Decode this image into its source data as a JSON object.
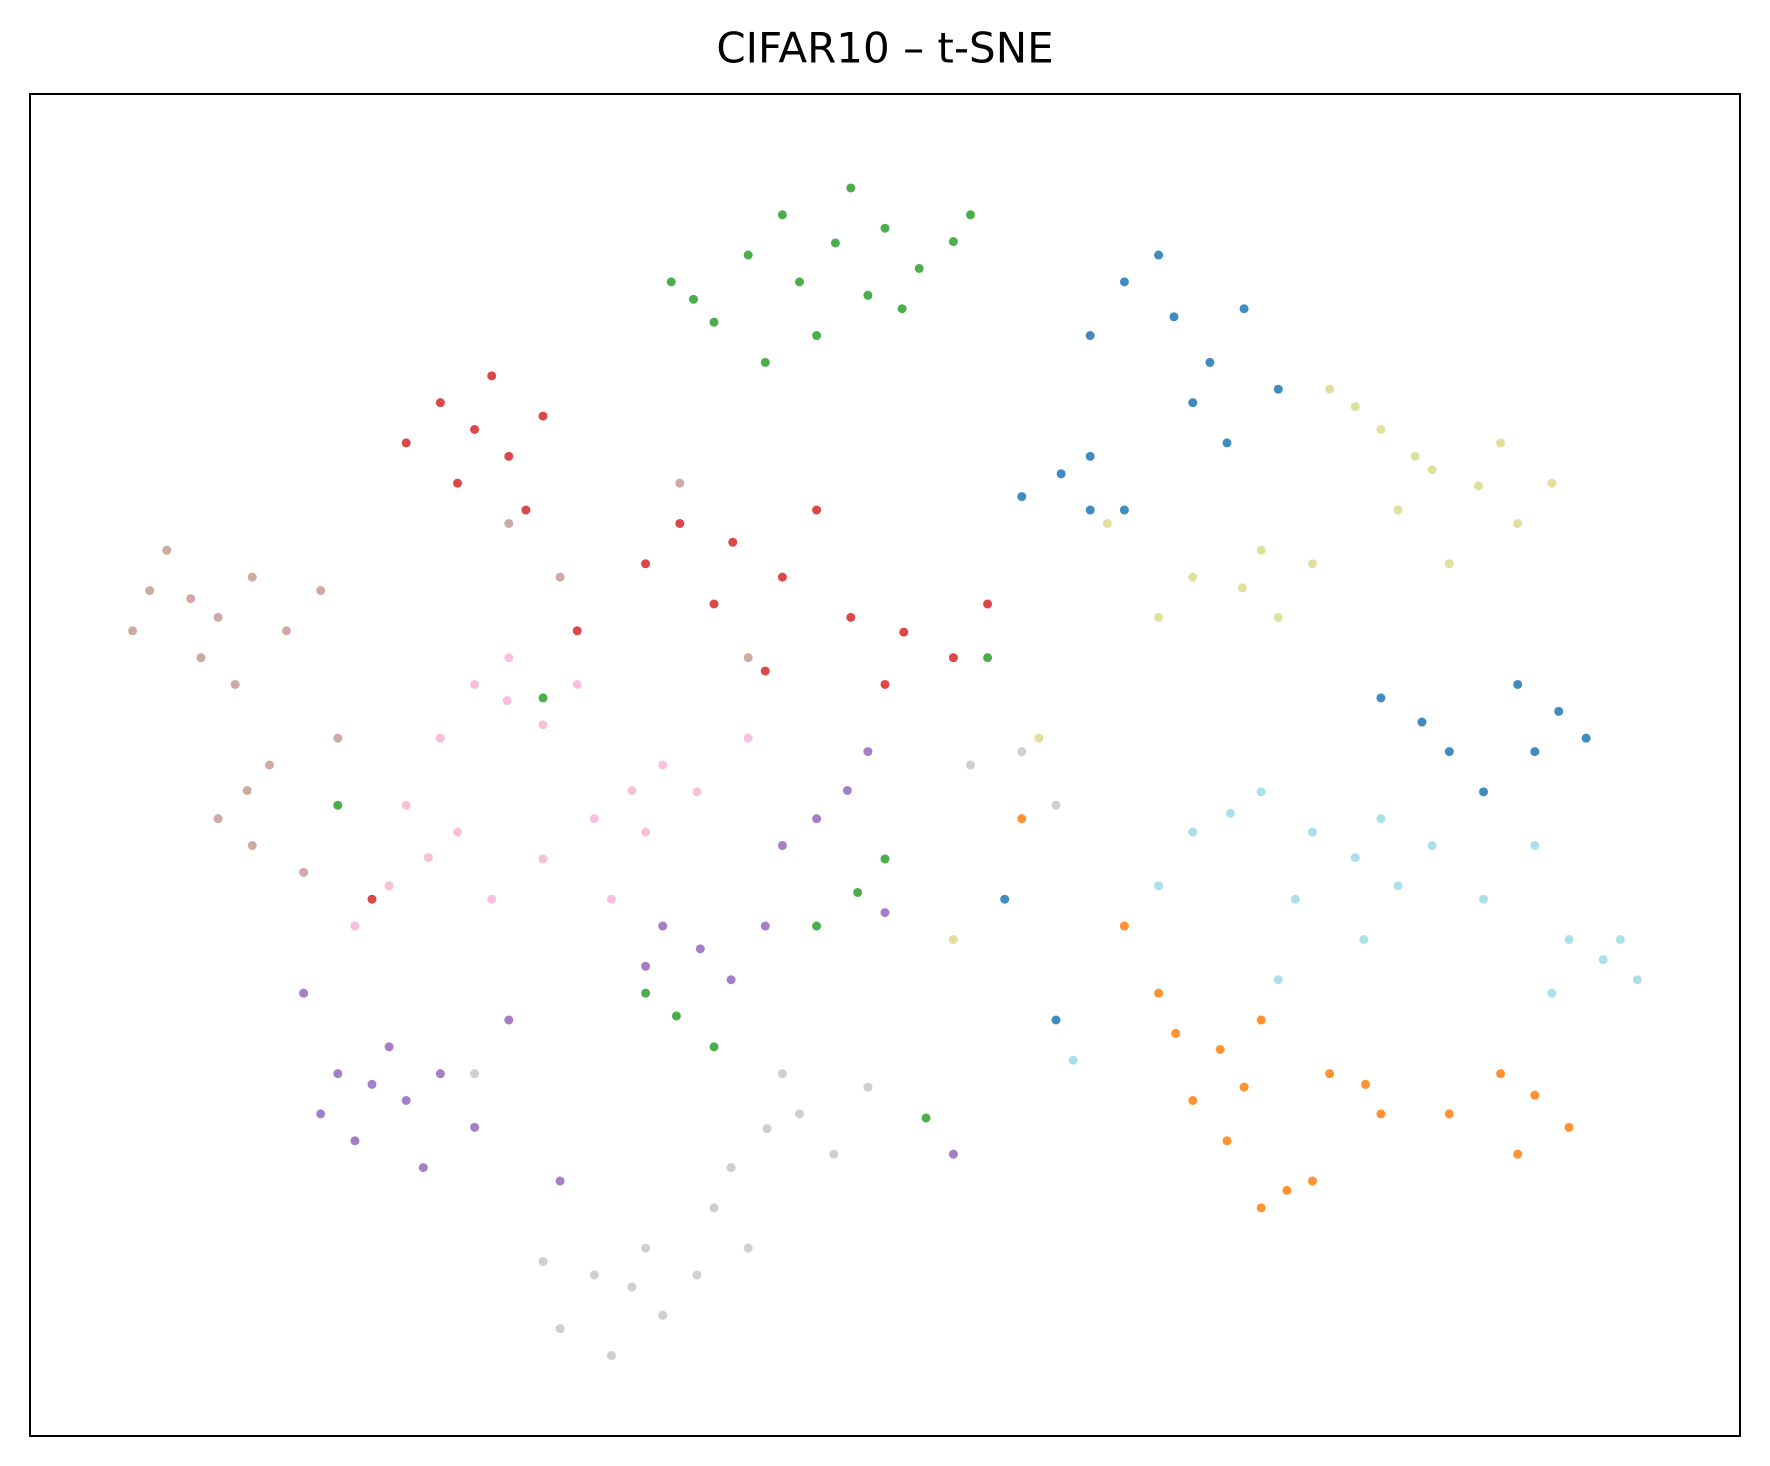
{
  "chart_data": {
    "type": "scatter",
    "title": "CIFAR10 – t-SNE",
    "xlim": [
      0,
      100
    ],
    "ylim": [
      0,
      100
    ],
    "series": [
      {
        "color": "#2ca02c",
        "x": [
          47.1,
          44,
          50,
          52,
          45,
          48,
          42,
          54,
          49,
          38.8,
          40,
          37.5,
          43,
          46,
          51,
          55,
          48.4,
          50,
          46,
          37.8,
          40,
          36,
          52.4,
          30,
          18,
          56
        ],
        "y": [
          88.9,
          91,
          90,
          87,
          86,
          93,
          88,
          89,
          85,
          84.7,
          83,
          86,
          80,
          82,
          84,
          91,
          40.5,
          43,
          38,
          31.3,
          29,
          33,
          23.7,
          55,
          47,
          58
        ]
      },
      {
        "color": "#1f77b4",
        "x": [
          66.9,
          64,
          69,
          71,
          66,
          68,
          73,
          62,
          60.3,
          58,
          62,
          64,
          70,
          89.4,
          87,
          91,
          88,
          81.4,
          79,
          83,
          85,
          57,
          60,
          62
        ],
        "y": [
          83.4,
          86,
          80,
          84,
          88,
          77,
          78,
          82,
          71.7,
          70,
          73,
          69,
          74,
          54,
          56,
          52,
          51,
          53.2,
          55,
          51,
          48,
          40,
          31,
          69
        ]
      },
      {
        "color": "#d62728",
        "x": [
          26,
          24,
          28,
          22,
          27,
          30,
          25,
          29,
          41.1,
          38,
          44,
          40,
          36,
          46,
          51.1,
          48,
          54,
          50,
          56,
          20,
          32,
          43
        ],
        "y": [
          75,
          77,
          73,
          74,
          79,
          76,
          71,
          69,
          66.6,
          68,
          64,
          62,
          65,
          69,
          59.9,
          61,
          58,
          56,
          62,
          40,
          60,
          57
        ]
      },
      {
        "color": "#c49c94",
        "x": [
          9.4,
          7,
          11,
          6,
          13,
          10,
          15,
          8,
          17,
          12,
          12.7,
          11,
          14,
          13,
          16,
          18,
          31,
          28,
          38,
          42
        ],
        "y": [
          62.4,
          63,
          61,
          60,
          64,
          58,
          60,
          66,
          63,
          56,
          48.1,
          46,
          50,
          44,
          42,
          52,
          64,
          68,
          71,
          58
        ]
      },
      {
        "color": "#f7b6d2",
        "x": [
          27.9,
          26,
          30,
          24,
          28,
          32,
          35.2,
          33,
          37,
          36,
          39,
          23.3,
          21,
          25,
          22,
          27,
          30,
          42,
          34,
          19
        ],
        "y": [
          54.8,
          56,
          53,
          52,
          58,
          56,
          48.1,
          46,
          50,
          45,
          48,
          43.1,
          41,
          45,
          47,
          40,
          43,
          52,
          40,
          38
        ]
      },
      {
        "color": "#9467bd",
        "x": [
          20,
          18,
          22,
          17,
          21,
          24,
          26,
          23,
          19,
          28,
          39.2,
          37,
          41,
          36,
          43,
          47.8,
          46,
          49,
          44,
          50,
          31,
          54,
          16
        ],
        "y": [
          26.2,
          27,
          25,
          24,
          29,
          27,
          23,
          20,
          22,
          31,
          36.3,
          38,
          34,
          35,
          38,
          48.1,
          46,
          51,
          44,
          39,
          19,
          21,
          33
        ]
      },
      {
        "color": "#c7c7c7",
        "x": [
          35.2,
          33,
          37,
          31,
          36,
          34,
          39,
          30,
          43.1,
          41,
          45,
          40,
          47,
          44,
          42,
          49,
          26,
          55,
          58,
          60
        ],
        "y": [
          11.1,
          12,
          9,
          8,
          14,
          6,
          12,
          13,
          22.9,
          20,
          24,
          17,
          21,
          27,
          14,
          26,
          27,
          50,
          51,
          47
        ]
      },
      {
        "color": "#dbdb8d",
        "x": [
          84.7,
          82,
          87,
          86,
          80,
          89,
          83,
          70.9,
          68,
          73,
          72,
          66,
          75,
          77.5,
          76,
          79,
          81,
          63,
          59,
          54
        ],
        "y": [
          70.8,
          72,
          68,
          74,
          69,
          71,
          65,
          63.2,
          64,
          61,
          66,
          61,
          65,
          76.7,
          78,
          75,
          73,
          68,
          52,
          37
        ]
      },
      {
        "color": "#9edae5",
        "x": [
          77.5,
          75,
          80,
          79,
          74,
          82,
          78,
          85,
          92,
          90,
          94,
          93,
          89,
          70.2,
          68,
          72,
          66,
          73,
          61,
          88
        ],
        "y": [
          43.1,
          45,
          41,
          46,
          40,
          44,
          37,
          40,
          35.5,
          37,
          34,
          37,
          33,
          46.4,
          45,
          48,
          41,
          34,
          28,
          44
        ]
      },
      {
        "color": "#ff7f0e",
        "x": [
          69.6,
          67,
          71,
          68,
          72,
          66,
          70,
          78.1,
          76,
          79,
          88,
          86,
          90,
          87,
          73.5,
          72,
          75,
          64,
          58,
          83
        ],
        "y": [
          28.8,
          30,
          26,
          25,
          31,
          33,
          22,
          26.2,
          27,
          24,
          25.4,
          27,
          23,
          21,
          18.3,
          17,
          19,
          38,
          46,
          24
        ]
      }
    ]
  }
}
